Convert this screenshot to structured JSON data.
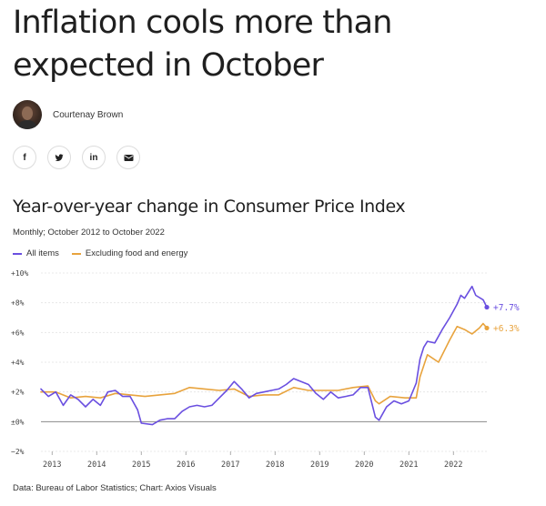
{
  "article": {
    "headline": "Inflation cools more than expected in October",
    "author": "Courtenay Brown"
  },
  "share_buttons": [
    {
      "label": "f",
      "icon": "facebook-icon"
    },
    {
      "label": "🐦",
      "icon": "twitter-icon"
    },
    {
      "label": "in",
      "icon": "linkedin-icon"
    },
    {
      "label": "✉",
      "icon": "email-icon"
    }
  ],
  "chart_data": {
    "type": "line",
    "title": "Year-over-year change in Consumer Price Index",
    "subtitle": "Monthly; October 2012 to October 2022",
    "source": "Data: Bureau of Labor Statistics; Chart: Axios Visuals",
    "xlabel": "",
    "ylabel": "",
    "ylim": [
      -2,
      10
    ],
    "y_ticks": [
      -2,
      0,
      2,
      4,
      6,
      8,
      10
    ],
    "y_tick_labels": [
      "−2%",
      "±0%",
      "+2%",
      "+4%",
      "+6%",
      "+8%",
      "+10%"
    ],
    "x_ticks": [
      2013,
      2014,
      2015,
      2016,
      2017,
      2018,
      2019,
      2020,
      2021,
      2022
    ],
    "x_range": [
      "2012-10",
      "2022-10"
    ],
    "grid": true,
    "legend_position": "top-left",
    "series": [
      {
        "name": "All items",
        "color": "#6a4fe0",
        "end_label": "+7.7%",
        "points": [
          [
            "2012-10",
            2.2
          ],
          [
            "2012-12",
            1.7
          ],
          [
            "2013-02",
            2.0
          ],
          [
            "2013-04",
            1.1
          ],
          [
            "2013-06",
            1.8
          ],
          [
            "2013-08",
            1.5
          ],
          [
            "2013-10",
            1.0
          ],
          [
            "2013-12",
            1.5
          ],
          [
            "2014-02",
            1.1
          ],
          [
            "2014-04",
            2.0
          ],
          [
            "2014-06",
            2.1
          ],
          [
            "2014-08",
            1.7
          ],
          [
            "2014-10",
            1.7
          ],
          [
            "2014-12",
            0.8
          ],
          [
            "2015-01",
            -0.1
          ],
          [
            "2015-04",
            -0.2
          ],
          [
            "2015-06",
            0.1
          ],
          [
            "2015-08",
            0.2
          ],
          [
            "2015-10",
            0.2
          ],
          [
            "2015-12",
            0.7
          ],
          [
            "2016-02",
            1.0
          ],
          [
            "2016-04",
            1.1
          ],
          [
            "2016-06",
            1.0
          ],
          [
            "2016-08",
            1.1
          ],
          [
            "2016-10",
            1.6
          ],
          [
            "2016-12",
            2.1
          ],
          [
            "2017-02",
            2.7
          ],
          [
            "2017-04",
            2.2
          ],
          [
            "2017-06",
            1.6
          ],
          [
            "2017-08",
            1.9
          ],
          [
            "2017-10",
            2.0
          ],
          [
            "2017-12",
            2.1
          ],
          [
            "2018-02",
            2.2
          ],
          [
            "2018-04",
            2.5
          ],
          [
            "2018-06",
            2.9
          ],
          [
            "2018-08",
            2.7
          ],
          [
            "2018-10",
            2.5
          ],
          [
            "2018-12",
            1.9
          ],
          [
            "2019-02",
            1.5
          ],
          [
            "2019-04",
            2.0
          ],
          [
            "2019-06",
            1.6
          ],
          [
            "2019-08",
            1.7
          ],
          [
            "2019-10",
            1.8
          ],
          [
            "2019-12",
            2.3
          ],
          [
            "2020-02",
            2.3
          ],
          [
            "2020-04",
            0.3
          ],
          [
            "2020-05",
            0.1
          ],
          [
            "2020-07",
            1.0
          ],
          [
            "2020-09",
            1.4
          ],
          [
            "2020-11",
            1.2
          ],
          [
            "2021-01",
            1.4
          ],
          [
            "2021-03",
            2.6
          ],
          [
            "2021-04",
            4.2
          ],
          [
            "2021-05",
            5.0
          ],
          [
            "2021-06",
            5.4
          ],
          [
            "2021-08",
            5.3
          ],
          [
            "2021-10",
            6.2
          ],
          [
            "2021-12",
            7.0
          ],
          [
            "2022-02",
            7.9
          ],
          [
            "2022-03",
            8.5
          ],
          [
            "2022-04",
            8.3
          ],
          [
            "2022-06",
            9.1
          ],
          [
            "2022-07",
            8.5
          ],
          [
            "2022-09",
            8.2
          ],
          [
            "2022-10",
            7.7
          ]
        ]
      },
      {
        "name": "Excluding food and energy",
        "color": "#e8a33d",
        "end_label": "+6.3%",
        "points": [
          [
            "2012-10",
            2.0
          ],
          [
            "2013-02",
            2.0
          ],
          [
            "2013-06",
            1.6
          ],
          [
            "2013-10",
            1.7
          ],
          [
            "2014-02",
            1.6
          ],
          [
            "2014-06",
            1.9
          ],
          [
            "2014-10",
            1.8
          ],
          [
            "2015-02",
            1.7
          ],
          [
            "2015-06",
            1.8
          ],
          [
            "2015-10",
            1.9
          ],
          [
            "2016-02",
            2.3
          ],
          [
            "2016-06",
            2.2
          ],
          [
            "2016-10",
            2.1
          ],
          [
            "2017-02",
            2.2
          ],
          [
            "2017-06",
            1.7
          ],
          [
            "2017-10",
            1.8
          ],
          [
            "2018-02",
            1.8
          ],
          [
            "2018-06",
            2.3
          ],
          [
            "2018-10",
            2.1
          ],
          [
            "2019-02",
            2.1
          ],
          [
            "2019-06",
            2.1
          ],
          [
            "2019-10",
            2.3
          ],
          [
            "2020-02",
            2.4
          ],
          [
            "2020-04",
            1.4
          ],
          [
            "2020-05",
            1.2
          ],
          [
            "2020-08",
            1.7
          ],
          [
            "2020-12",
            1.6
          ],
          [
            "2021-03",
            1.6
          ],
          [
            "2021-04",
            3.0
          ],
          [
            "2021-06",
            4.5
          ],
          [
            "2021-09",
            4.0
          ],
          [
            "2021-12",
            5.5
          ],
          [
            "2022-02",
            6.4
          ],
          [
            "2022-04",
            6.2
          ],
          [
            "2022-06",
            5.9
          ],
          [
            "2022-08",
            6.3
          ],
          [
            "2022-09",
            6.6
          ],
          [
            "2022-10",
            6.3
          ]
        ]
      }
    ]
  }
}
